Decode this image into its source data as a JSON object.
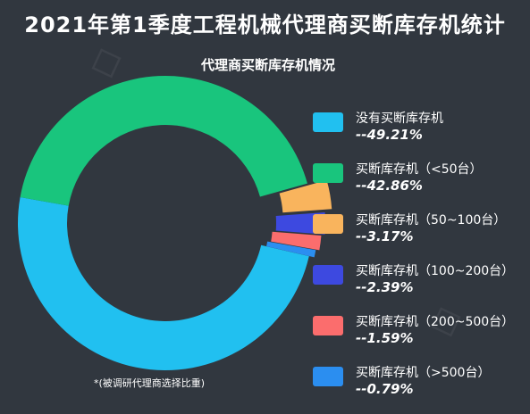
{
  "chart_data": {
    "type": "pie",
    "title": "2021年第1季度工程机械代理商买断库存机统计",
    "subtitle": "代理商买断库存机情况",
    "footnote": "*(被调研代理商选择比重)",
    "series": [
      {
        "name": "没有买断库存机",
        "value_label": "--49.21%",
        "value": 49.21,
        "color": "#21c0f0"
      },
      {
        "name": "买断库存机（<50台）",
        "value_label": "--42.86%",
        "value": 42.86,
        "color": "#19c57d"
      },
      {
        "name": "买断库存机（50~100台）",
        "value_label": "--3.17%",
        "value": 3.17,
        "color": "#f9b45d"
      },
      {
        "name": "买断库存机（100~200台）",
        "value_label": "--2.39%",
        "value": 2.39,
        "color": "#3d49e0"
      },
      {
        "name": "买断库存机（200~500台）",
        "value_label": "--1.59%",
        "value": 1.59,
        "color": "#fb6d6d"
      },
      {
        "name": "买断库存机（>500台）",
        "value_label": "--0.79%",
        "value": 0.79,
        "color": "#2b8ef0"
      }
    ]
  }
}
